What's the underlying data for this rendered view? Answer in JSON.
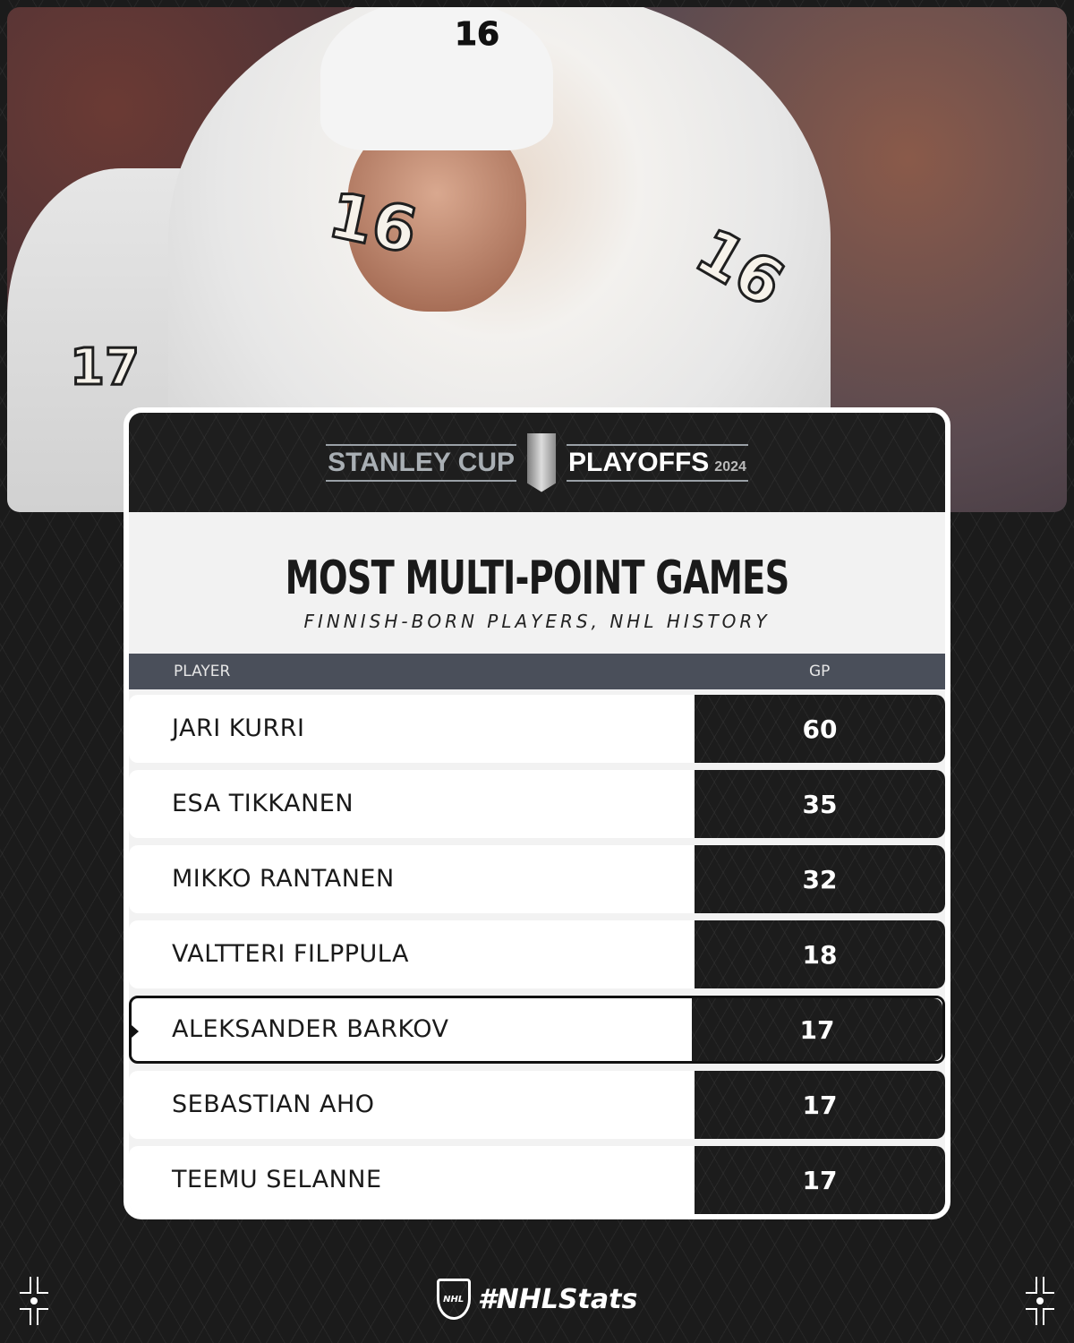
{
  "header": {
    "logo_left": "STANLEY CUP",
    "logo_right": "PLAYOFFS",
    "year": "2024",
    "league_badge": "NHL"
  },
  "photo": {
    "jersey_number": "16",
    "teammate_number": "17"
  },
  "title": "MOST MULTI-POINT GAMES",
  "subtitle": "FINNISH-BORN PLAYERS, NHL HISTORY",
  "table": {
    "columns": [
      "PLAYER",
      "GP"
    ],
    "rows": [
      {
        "player": "JARI KURRI",
        "gp": "60"
      },
      {
        "player": "ESA TIKKANEN",
        "gp": "35"
      },
      {
        "player": "MIKKO RANTANEN",
        "gp": "32"
      },
      {
        "player": "VALTTERI FILPPULA",
        "gp": "18"
      },
      {
        "player": "ALEKSANDER BARKOV",
        "gp": "17",
        "highlighted": true
      },
      {
        "player": "SEBASTIAN AHO",
        "gp": "17"
      },
      {
        "player": "TEEMU SELANNE",
        "gp": "17"
      }
    ]
  },
  "footer": {
    "hashtag": "#NHLStats",
    "badge": "NHL"
  },
  "colors": {
    "background": "#1b1b1b",
    "table_header": "#4a4f5a",
    "gp_cell": "#1c1c1c",
    "card": "#f2f2f2"
  }
}
